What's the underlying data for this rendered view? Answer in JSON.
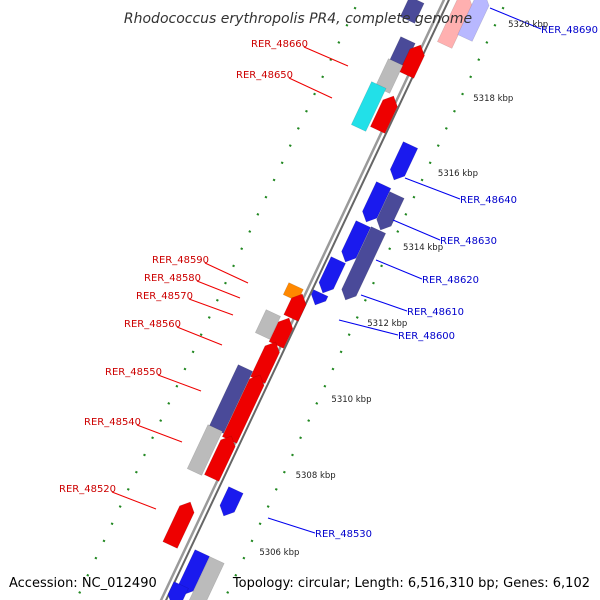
{
  "title": "Rhodococcus erythropolis PR4, complete genome",
  "accession": "Accession: NC_012490",
  "topology": "Topology: circular; Length: 6,516,310 bp; Genes: 6,102",
  "colors": {
    "forward_strand": "#ee0000",
    "reverse_strand": "#0000ee",
    "backbone": "#888888",
    "tick": "#228822",
    "label_forward": "#cc0000",
    "label_reverse": "#0000cc",
    "gene_blue": "#1a1aee",
    "gene_purple": "#4a4a99",
    "gene_gray": "#bbbbbb",
    "gene_cyan": "#22e0e8",
    "gene_orange": "#ff8800"
  },
  "kbp_ticks": [
    "5306 kbp",
    "5308 kbp",
    "5310 kbp",
    "5312 kbp",
    "5314 kbp",
    "5316 kbp",
    "5318 kbp",
    "5320 kbp"
  ],
  "labels_forward_strand": [
    "RER_48660",
    "RER_48650",
    "RER_48590",
    "RER_48580",
    "RER_48570",
    "RER_48560",
    "RER_48550",
    "RER_48540",
    "RER_48520"
  ],
  "labels_reverse_strand": [
    "RER_48690",
    "RER_48640",
    "RER_48630",
    "RER_48620",
    "RER_48610",
    "RER_48600",
    "RER_48530"
  ]
}
